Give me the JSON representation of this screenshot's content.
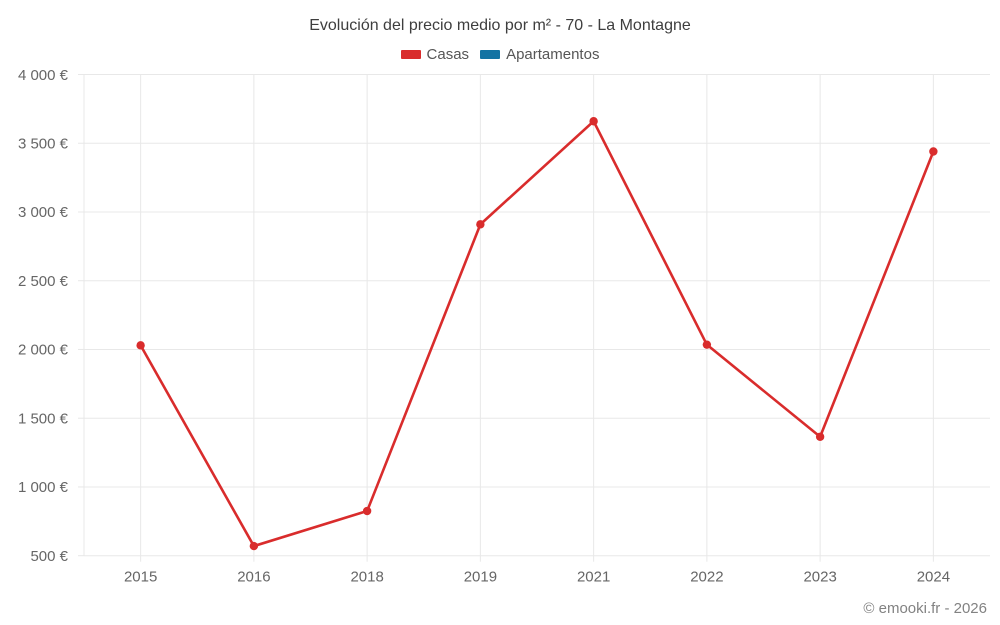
{
  "chart_data": {
    "type": "line",
    "title": "Evolución del precio medio por m² - 70 - La Montagne",
    "categories": [
      "2015",
      "2016",
      "2018",
      "2019",
      "2021",
      "2022",
      "2023",
      "2024"
    ],
    "series": [
      {
        "name": "Casas",
        "color": "#d92c2c",
        "values": [
          2030,
          570,
          825,
          2910,
          3660,
          2035,
          1365,
          3440
        ]
      },
      {
        "name": "Apartamentos",
        "color": "#1373a3",
        "values": []
      }
    ],
    "ylim": [
      500,
      4000
    ],
    "ytick_step": 500,
    "ytick_labels": [
      "500 €",
      "1 000 €",
      "1 500 €",
      "2 000 €",
      "2 500 €",
      "3 000 €",
      "3 500 €",
      "4 000 €"
    ],
    "xlabel": "",
    "ylabel": "",
    "grid": true,
    "legend_position": "top"
  },
  "footer": {
    "text": "© emooki.fr - 2026"
  }
}
